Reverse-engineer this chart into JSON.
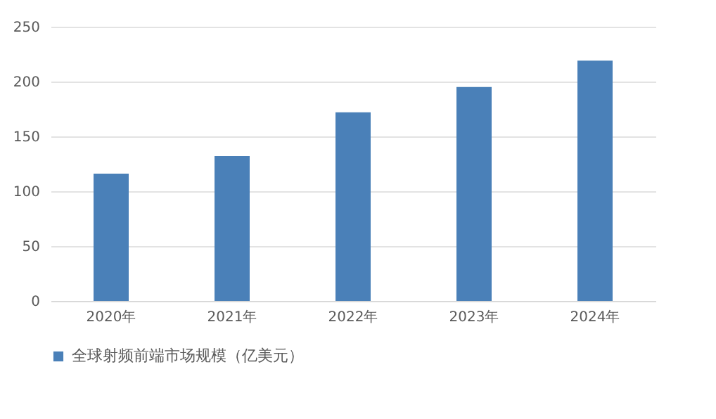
{
  "chart_data": {
    "type": "bar",
    "categories": [
      "2020年",
      "2021年",
      "2022年",
      "2023年",
      "2024年"
    ],
    "series": [
      {
        "name": "全球射频前端市场规模（亿美元）",
        "color": "#4a80b8",
        "values": [
          116,
          132,
          172,
          195,
          219
        ]
      }
    ],
    "ylim": [
      0,
      250
    ],
    "yticks": [
      0,
      50,
      100,
      150,
      200,
      250
    ],
    "grid": "y",
    "legend": "bottom"
  }
}
